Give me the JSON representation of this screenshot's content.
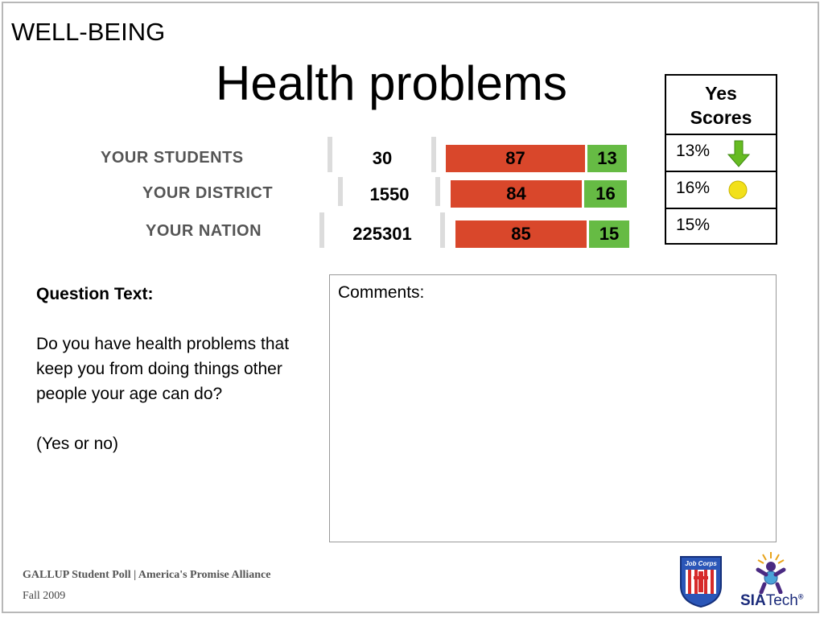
{
  "section_label": "WELL-BEING",
  "title": "Health problems",
  "rows": [
    {
      "label": "YOUR STUDENTS",
      "count": "30",
      "no": 87,
      "yes": 13
    },
    {
      "label": "YOUR DISTRICT",
      "count": "1550",
      "no": 84,
      "yes": 16
    },
    {
      "label": "YOUR NATION",
      "count": "225301",
      "no": 85,
      "yes": 15
    }
  ],
  "scores": {
    "header_line1": "Yes",
    "header_line2": "Scores",
    "cells": [
      {
        "value": "13%",
        "indicator": "green-down-arrow-icon"
      },
      {
        "value": "16%",
        "indicator": "yellow-circle-icon"
      },
      {
        "value": "15%",
        "indicator": ""
      }
    ],
    "colors": {
      "no_bar": "#d9472b",
      "yes_bar": "#66bb44",
      "arrow": "#66bb22",
      "circle": "#f2e01a"
    }
  },
  "question": {
    "heading": "Question Text:",
    "text": "Do you have health problems that keep you from doing things other people your age can do?",
    "note": "(Yes or no)"
  },
  "comments": {
    "label": "Comments:"
  },
  "footer": {
    "line1": "GALLUP Student Poll | America's Promise Alliance",
    "line2": "Fall 2009"
  },
  "logos": {
    "job_corps": "Job Corps",
    "siatech_bold": "SIA",
    "siatech_rest": "Tech",
    "siatech_mark": "®"
  }
}
